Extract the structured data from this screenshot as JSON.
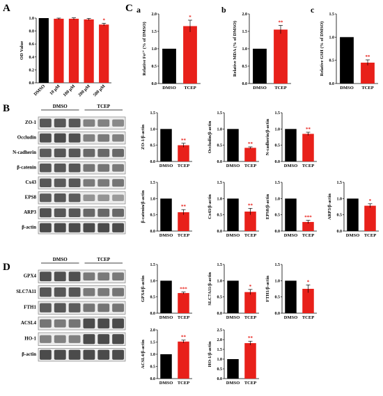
{
  "panel_letters": {
    "A": "A",
    "B": "B",
    "C": "C",
    "D": "D"
  },
  "sub_letters": {
    "a": "a",
    "b": "b",
    "c": "c"
  },
  "colors": {
    "control": "#000000",
    "treated": "#e8201a",
    "error": "#000000",
    "band": "#3a3a3a"
  },
  "blots": [
    {
      "id": "blot-b",
      "groups": [
        "DMSO",
        "TCEP"
      ],
      "rows": [
        {
          "label": "ZO-1",
          "intensity": [
            0.85,
            0.85,
            0.85,
            0.5,
            0.5,
            0.45
          ]
        },
        {
          "label": "Occludin",
          "intensity": [
            0.9,
            0.95,
            0.9,
            0.5,
            0.55,
            0.5
          ]
        },
        {
          "label": "N-cadherin",
          "intensity": [
            0.8,
            0.85,
            0.85,
            0.7,
            0.7,
            0.7
          ]
        },
        {
          "label": "β-catenin",
          "intensity": [
            0.85,
            0.85,
            0.85,
            0.6,
            0.6,
            0.55
          ]
        },
        {
          "label": "Cx43",
          "intensity": [
            0.85,
            0.8,
            0.85,
            0.55,
            0.55,
            0.6
          ]
        },
        {
          "label": "EPS8",
          "intensity": [
            0.8,
            0.85,
            0.8,
            0.35,
            0.35,
            0.3
          ]
        },
        {
          "label": "ARP3",
          "intensity": [
            0.9,
            0.85,
            0.85,
            0.7,
            0.7,
            0.7
          ]
        },
        {
          "label": "β-actin",
          "intensity": [
            0.95,
            0.95,
            0.95,
            0.95,
            0.95,
            0.95
          ]
        }
      ]
    },
    {
      "id": "blot-d",
      "groups": [
        "DMSO",
        "TCEP"
      ],
      "rows": [
        {
          "label": "GPX4",
          "intensity": [
            0.9,
            0.9,
            0.9,
            0.55,
            0.55,
            0.55
          ]
        },
        {
          "label": "SLC7A11",
          "intensity": [
            0.85,
            0.85,
            0.85,
            0.55,
            0.55,
            0.6
          ]
        },
        {
          "label": "FTH1",
          "intensity": [
            0.8,
            0.85,
            0.8,
            0.6,
            0.6,
            0.6
          ]
        },
        {
          "label": "ACSL4",
          "intensity": [
            0.6,
            0.55,
            0.6,
            0.95,
            0.95,
            0.95
          ]
        },
        {
          "label": "HO-1",
          "intensity": [
            0.5,
            0.5,
            0.5,
            0.95,
            0.95,
            0.95
          ]
        },
        {
          "label": "β-actin",
          "intensity": [
            0.95,
            0.95,
            0.95,
            0.95,
            0.95,
            0.95
          ]
        }
      ]
    }
  ],
  "chart_data": [
    {
      "id": "A",
      "type": "bar",
      "ylabel": "OD Value",
      "ylim": [
        0,
        1.0
      ],
      "yticks": [
        "0.0",
        "0.2",
        "0.4",
        "0.6",
        "0.8",
        "1.0"
      ],
      "categories": [
        "DMSO",
        "10 μM",
        "100 μM",
        "200 μM",
        "500 μM"
      ],
      "rotate": true,
      "values": [
        1.0,
        0.99,
        0.99,
        0.98,
        0.9
      ],
      "errors": [
        0.0,
        0.01,
        0.015,
        0.015,
        0.02
      ],
      "sig": [
        "",
        "",
        "",
        "",
        "*"
      ]
    },
    {
      "id": "Ca",
      "type": "bar",
      "ylabel": "Relative Fe²⁺ (% of DMSO)",
      "ylim": [
        0,
        2.0
      ],
      "yticks": [
        "0.0",
        "0.5",
        "1.0",
        "1.5",
        "2.0"
      ],
      "categories": [
        "DMSO",
        "TCEP"
      ],
      "values": [
        1.0,
        1.65
      ],
      "errors": [
        0.0,
        0.17
      ],
      "sig": [
        "",
        "*"
      ]
    },
    {
      "id": "Cb",
      "type": "bar",
      "ylabel": "Relative MDA (% of DMSO)",
      "ylim": [
        0,
        2.0
      ],
      "yticks": [
        "0.0",
        "0.5",
        "1.0",
        "1.5",
        "2.0"
      ],
      "categories": [
        "DMSO",
        "TCEP"
      ],
      "values": [
        1.0,
        1.55
      ],
      "errors": [
        0.0,
        0.12
      ],
      "sig": [
        "",
        "**"
      ]
    },
    {
      "id": "Cc",
      "type": "bar",
      "ylabel": "Relative GSH (% of DMSO)",
      "ylim": [
        0,
        1.5
      ],
      "yticks": [
        "0.0",
        "0.5",
        "1.0",
        "1.5"
      ],
      "categories": [
        "DMSO",
        "TCEP"
      ],
      "values": [
        1.0,
        0.45
      ],
      "errors": [
        0.0,
        0.06
      ],
      "sig": [
        "",
        "**"
      ]
    },
    {
      "id": "ZO1",
      "type": "bar",
      "ylabel": "ZO-1/β-actin",
      "ylim": [
        0,
        1.5
      ],
      "yticks": [
        "0.0",
        "0.5",
        "1.0",
        "1.5"
      ],
      "categories": [
        "DMSO",
        "TCEP"
      ],
      "values": [
        1.0,
        0.5
      ],
      "errors": [
        0.0,
        0.06
      ],
      "sig": [
        "",
        "**"
      ]
    },
    {
      "id": "Occludin",
      "type": "bar",
      "ylabel": "Occludin/β-actin",
      "ylim": [
        0,
        1.5
      ],
      "yticks": [
        "0.0",
        "0.5",
        "1.0",
        "1.5"
      ],
      "categories": [
        "DMSO",
        "TCEP"
      ],
      "values": [
        1.0,
        0.42
      ],
      "errors": [
        0.0,
        0.03
      ],
      "sig": [
        "",
        "**"
      ]
    },
    {
      "id": "Ncad",
      "type": "bar",
      "ylabel": "N-cadherin/β-actin",
      "ylim": [
        0,
        1.5
      ],
      "yticks": [
        "0.0",
        "0.5",
        "1.0",
        "1.5"
      ],
      "categories": [
        "DMSO",
        "TCEP"
      ],
      "values": [
        1.0,
        0.85
      ],
      "errors": [
        0.0,
        0.05
      ],
      "sig": [
        "",
        "**"
      ]
    },
    {
      "id": "bcat",
      "type": "bar",
      "ylabel": "β-catenin/β-actin",
      "ylim": [
        0,
        1.5
      ],
      "yticks": [
        "0.0",
        "0.5",
        "1.0",
        "1.5"
      ],
      "categories": [
        "DMSO",
        "TCEP"
      ],
      "values": [
        1.0,
        0.58
      ],
      "errors": [
        0.0,
        0.08
      ],
      "sig": [
        "",
        "**"
      ]
    },
    {
      "id": "Cx43",
      "type": "bar",
      "ylabel": "Cx43/β-actin",
      "ylim": [
        0,
        1.5
      ],
      "yticks": [
        "0.0",
        "0.5",
        "1.0",
        "1.5"
      ],
      "categories": [
        "DMSO",
        "TCEP"
      ],
      "values": [
        1.0,
        0.6
      ],
      "errors": [
        0.0,
        0.1
      ],
      "sig": [
        "",
        "**"
      ]
    },
    {
      "id": "EPS8",
      "type": "bar",
      "ylabel": "EPS8/β-actin",
      "ylim": [
        0,
        1.5
      ],
      "yticks": [
        "0.0",
        "0.5",
        "1.0",
        "1.5"
      ],
      "categories": [
        "DMSO",
        "TCEP"
      ],
      "values": [
        1.0,
        0.28
      ],
      "errors": [
        0.0,
        0.05
      ],
      "sig": [
        "",
        "***"
      ]
    },
    {
      "id": "ARP3",
      "type": "bar",
      "ylabel": "ARP3/β-actin",
      "ylim": [
        0,
        1.5
      ],
      "yticks": [
        "0.0",
        "0.5",
        "1.0",
        "1.5"
      ],
      "categories": [
        "DMSO",
        "TCEP"
      ],
      "values": [
        1.0,
        0.78
      ],
      "errors": [
        0.0,
        0.06
      ],
      "sig": [
        "",
        "*"
      ]
    },
    {
      "id": "GPX4",
      "type": "bar",
      "ylabel": "GPX4/β-actin",
      "ylim": [
        0,
        1.5
      ],
      "yticks": [
        "0.0",
        "0.5",
        "1.0",
        "1.5"
      ],
      "categories": [
        "DMSO",
        "TCEP"
      ],
      "values": [
        1.0,
        0.62
      ],
      "errors": [
        0.0,
        0.03
      ],
      "sig": [
        "",
        "***"
      ]
    },
    {
      "id": "SLC7A11",
      "type": "bar",
      "ylabel": "SLC7A11/β-actin",
      "ylim": [
        0,
        1.5
      ],
      "yticks": [
        "0.0",
        "0.5",
        "1.0",
        "1.5"
      ],
      "categories": [
        "DMSO",
        "TCEP"
      ],
      "values": [
        1.0,
        0.65
      ],
      "errors": [
        0.0,
        0.08
      ],
      "sig": [
        "",
        "*"
      ]
    },
    {
      "id": "FTH1",
      "type": "bar",
      "ylabel": "FTH1/β-actin",
      "ylim": [
        0,
        1.5
      ],
      "yticks": [
        "0.0",
        "0.5",
        "1.0",
        "1.5"
      ],
      "categories": [
        "DMSO",
        "TCEP"
      ],
      "values": [
        1.0,
        0.75
      ],
      "errors": [
        0.0,
        0.12
      ],
      "sig": [
        "",
        "*"
      ]
    },
    {
      "id": "ACSL4",
      "type": "bar",
      "ylabel": "ACSL4/β-actin",
      "ylim": [
        0,
        2.0
      ],
      "yticks": [
        "0.0",
        "0.5",
        "1.0",
        "1.5",
        "2.0"
      ],
      "categories": [
        "DMSO",
        "TCEP"
      ],
      "values": [
        1.0,
        1.52
      ],
      "errors": [
        0.0,
        0.06
      ],
      "sig": [
        "",
        "**"
      ]
    },
    {
      "id": "HO1",
      "type": "bar",
      "ylabel": "HO-1/β-actin",
      "ylim": [
        0,
        2.5
      ],
      "yticks": [
        "0.0",
        "0.5",
        "1.0",
        "1.5",
        "2.0",
        "2.5"
      ],
      "categories": [
        "DMSO",
        "TCEP"
      ],
      "values": [
        1.0,
        1.82
      ],
      "errors": [
        0.0,
        0.1
      ],
      "sig": [
        "",
        "**"
      ]
    }
  ]
}
